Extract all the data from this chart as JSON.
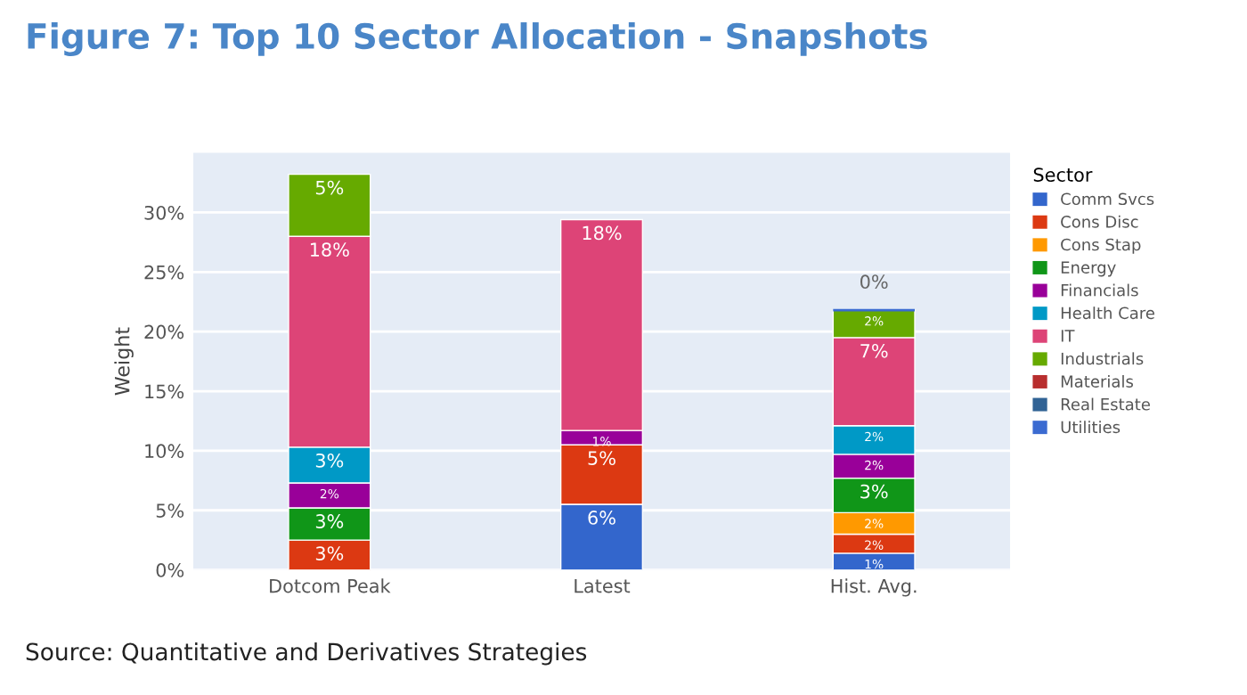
{
  "chart_data": {
    "type": "bar",
    "stacked": true,
    "title": "Figure 7: Top 10 Sector Allocation - Snapshots",
    "ylabel": "Weight",
    "legend_title": "Sector",
    "legend": "right",
    "grid": "y",
    "categories": [
      "Dotcom Peak",
      "Latest",
      "Hist. Avg."
    ],
    "ylim": [
      0,
      35
    ],
    "yticks": [
      {
        "value": 0,
        "label": "0%"
      },
      {
        "value": 5,
        "label": "5%"
      },
      {
        "value": 10,
        "label": "10%"
      },
      {
        "value": 15,
        "label": "15%"
      },
      {
        "value": 20,
        "label": "20%"
      },
      {
        "value": 25,
        "label": "25%"
      },
      {
        "value": 30,
        "label": "30%"
      }
    ],
    "series": [
      {
        "name": "Comm Svcs",
        "color": "#3366cc",
        "values": [
          null,
          5.5,
          1.4
        ],
        "value_labels": [
          null,
          "6%",
          "1%"
        ]
      },
      {
        "name": "Cons Disc",
        "color": "#dc3912",
        "values": [
          2.5,
          5.0,
          1.6
        ],
        "value_labels": [
          "3%",
          "5%",
          "2%"
        ]
      },
      {
        "name": "Cons Stap",
        "color": "#ff9900",
        "values": [
          null,
          null,
          1.8
        ],
        "value_labels": [
          null,
          null,
          "2%"
        ]
      },
      {
        "name": "Energy",
        "color": "#109618",
        "values": [
          2.7,
          null,
          2.9
        ],
        "value_labels": [
          "3%",
          null,
          "3%"
        ]
      },
      {
        "name": "Financials",
        "color": "#990099",
        "values": [
          2.1,
          1.2,
          2.0
        ],
        "value_labels": [
          "2%",
          "1%",
          "2%"
        ]
      },
      {
        "name": "Health Care",
        "color": "#0099c6",
        "values": [
          3.0,
          null,
          2.4
        ],
        "value_labels": [
          "3%",
          null,
          "2%"
        ]
      },
      {
        "name": "IT",
        "color": "#dd4477",
        "values": [
          17.7,
          17.7,
          7.4
        ],
        "value_labels": [
          "18%",
          "18%",
          "7%"
        ]
      },
      {
        "name": "Industrials",
        "color": "#66aa00",
        "values": [
          5.2,
          null,
          2.3
        ],
        "value_labels": [
          "5%",
          null,
          "2%"
        ]
      },
      {
        "name": "Materials",
        "color": "#b82e2e",
        "values": [
          null,
          null,
          null
        ]
      },
      {
        "name": "Real Estate",
        "color": "#316395",
        "values": [
          null,
          null,
          null
        ]
      },
      {
        "name": "Utilities",
        "color": "#3b6bd1",
        "values": [
          null,
          null,
          0
        ],
        "value_labels": [
          null,
          null,
          "0%"
        ]
      }
    ],
    "annotations": [
      "Source: Quantitative and Derivatives Strategies"
    ]
  }
}
